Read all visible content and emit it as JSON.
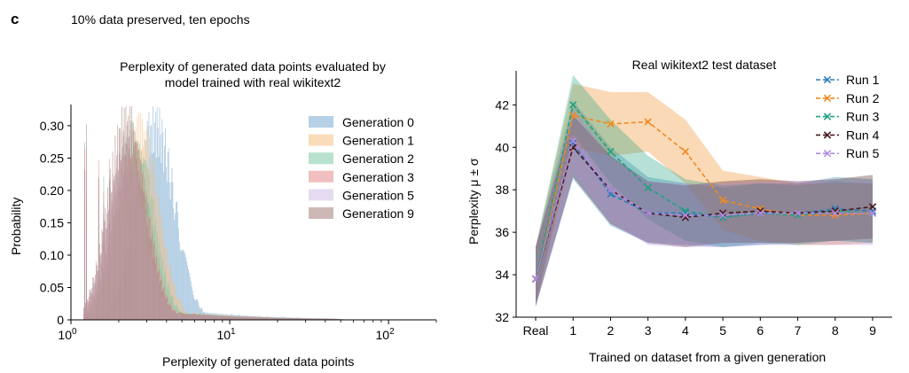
{
  "panel_label": "c",
  "figure_title": "10% data preserved, ten epochs",
  "chart_data": [
    {
      "type": "histogram",
      "title_lines": [
        "Perplexity of generated data points evaluated by",
        "model trained with real wikitext2"
      ],
      "xlabel": "Perplexity of generated data points",
      "ylabel": "Probability",
      "x_scale": "log",
      "xlim": [
        1,
        200
      ],
      "ylim": [
        0,
        0.33
      ],
      "x_ticks": [
        {
          "value": 1,
          "base": "10",
          "exp": "0"
        },
        {
          "value": 10,
          "base": "10",
          "exp": "1"
        },
        {
          "value": 100,
          "base": "10",
          "exp": "2"
        }
      ],
      "y_ticks": [
        {
          "value": 0,
          "label": "0"
        },
        {
          "value": 0.05,
          "label": "0.05"
        },
        {
          "value": 0.1,
          "label": "0.10"
        },
        {
          "value": 0.15,
          "label": "0.15"
        },
        {
          "value": 0.2,
          "label": "0.20"
        },
        {
          "value": 0.25,
          "label": "0.25"
        },
        {
          "value": 0.3,
          "label": "0.30"
        }
      ],
      "legend_position": "top-right",
      "series": [
        {
          "name": "Generation 0",
          "color": "#7aaad0",
          "mode": 3.4,
          "peak": 0.305,
          "sigma": 0.28,
          "spikes": [
            [
              1.22,
              0.12
            ],
            [
              1.25,
              0.08
            ],
            [
              1.5,
              0.14
            ],
            [
              1.6,
              0.16
            ],
            [
              1.75,
              0.18
            ]
          ]
        },
        {
          "name": "Generation 1",
          "color": "#f5bd82",
          "mode": 2.7,
          "peak": 0.3,
          "sigma": 0.27,
          "spikes": [
            [
              1.22,
              0.23
            ],
            [
              1.25,
              0.18
            ],
            [
              1.5,
              0.22
            ],
            [
              1.6,
              0.2
            ],
            [
              1.75,
              0.21
            ]
          ]
        },
        {
          "name": "Generation 2",
          "color": "#7ec8a6",
          "mode": 2.5,
          "peak": 0.28,
          "sigma": 0.27,
          "spikes": [
            [
              1.22,
              0.25
            ],
            [
              1.25,
              0.22
            ],
            [
              1.5,
              0.21
            ],
            [
              1.6,
              0.2
            ],
            [
              1.75,
              0.22
            ]
          ]
        },
        {
          "name": "Generation 3",
          "color": "#e58a8a",
          "mode": 2.35,
          "peak": 0.27,
          "sigma": 0.27,
          "spikes": [
            [
              1.22,
              0.27
            ],
            [
              1.25,
              0.23
            ],
            [
              1.5,
              0.22
            ],
            [
              1.6,
              0.21
            ],
            [
              1.75,
              0.23
            ]
          ]
        },
        {
          "name": "Generation 5",
          "color": "#cfbfe8",
          "mode": 2.25,
          "peak": 0.27,
          "sigma": 0.27,
          "spikes": [
            [
              1.22,
              0.26
            ],
            [
              1.25,
              0.24
            ],
            [
              1.5,
              0.21
            ],
            [
              1.6,
              0.2
            ],
            [
              1.75,
              0.22
            ]
          ]
        },
        {
          "name": "Generation 9",
          "color": "#a57d78",
          "mode": 2.25,
          "peak": 0.31,
          "sigma": 0.27,
          "spikes": [
            [
              1.22,
              0.28
            ],
            [
              1.25,
              0.27
            ],
            [
              1.5,
              0.22
            ],
            [
              1.6,
              0.2
            ],
            [
              1.75,
              0.24
            ]
          ]
        }
      ]
    },
    {
      "type": "line",
      "title": "Real wikitext2 test dataset",
      "xlabel": "Trained on dataset from a given generation",
      "ylabel": "Perplexity μ ± σ",
      "categories": [
        "Real",
        "1",
        "2",
        "3",
        "4",
        "5",
        "6",
        "7",
        "8",
        "9"
      ],
      "ylim": [
        32,
        43.6
      ],
      "y_ticks": [
        32,
        34,
        36,
        38,
        40,
        42
      ],
      "legend_position": "top-right",
      "series": [
        {
          "name": "Run 1",
          "color": "#2b7bb9",
          "values": [
            33.8,
            40.2,
            37.8,
            36.9,
            36.9,
            36.7,
            36.9,
            36.9,
            37.1,
            37.0
          ],
          "upper": [
            35.3,
            42.2,
            40.0,
            38.6,
            38.3,
            38.1,
            38.3,
            38.3,
            38.6,
            38.5
          ],
          "lower": [
            32.5,
            38.5,
            36.3,
            35.5,
            35.4,
            35.3,
            35.4,
            35.5,
            35.6,
            35.5
          ]
        },
        {
          "name": "Run 2",
          "color": "#f08a1f",
          "values": [
            33.8,
            41.5,
            41.1,
            41.2,
            39.8,
            37.5,
            37.1,
            36.8,
            36.8,
            36.9
          ],
          "upper": [
            35.3,
            43.0,
            42.6,
            42.6,
            41.3,
            38.9,
            38.6,
            38.3,
            38.3,
            38.3
          ],
          "lower": [
            32.5,
            40.0,
            39.6,
            39.8,
            38.3,
            36.1,
            35.6,
            35.4,
            35.4,
            35.5
          ]
        },
        {
          "name": "Run 3",
          "color": "#1fa181",
          "values": [
            33.8,
            42.0,
            39.8,
            38.1,
            37.0,
            36.7,
            36.9,
            36.8,
            37.0,
            36.9
          ],
          "upper": [
            35.3,
            43.4,
            41.3,
            39.6,
            38.5,
            38.2,
            38.3,
            38.2,
            38.4,
            38.3
          ],
          "lower": [
            32.5,
            40.6,
            38.3,
            36.6,
            35.6,
            35.3,
            35.5,
            35.4,
            35.6,
            35.5
          ]
        },
        {
          "name": "Run 4",
          "color": "#4a1a1a",
          "values": [
            33.8,
            40.0,
            38.0,
            36.9,
            36.7,
            36.9,
            37.0,
            36.9,
            37.0,
            37.2
          ],
          "upper": [
            35.3,
            41.5,
            39.6,
            38.4,
            38.2,
            38.4,
            38.5,
            38.4,
            38.5,
            38.7
          ],
          "lower": [
            32.5,
            38.6,
            36.4,
            35.5,
            35.3,
            35.5,
            35.5,
            35.5,
            35.6,
            35.7
          ]
        },
        {
          "name": "Run 5",
          "color": "#b08be0",
          "values": [
            33.8,
            40.3,
            38.0,
            36.9,
            36.8,
            36.8,
            36.9,
            36.9,
            36.9,
            36.9
          ],
          "upper": [
            35.3,
            41.8,
            39.5,
            38.4,
            38.3,
            38.3,
            38.4,
            38.4,
            38.4,
            38.4
          ],
          "lower": [
            32.5,
            38.8,
            36.5,
            35.4,
            35.3,
            35.3,
            35.4,
            35.4,
            35.4,
            35.4
          ]
        }
      ]
    }
  ]
}
